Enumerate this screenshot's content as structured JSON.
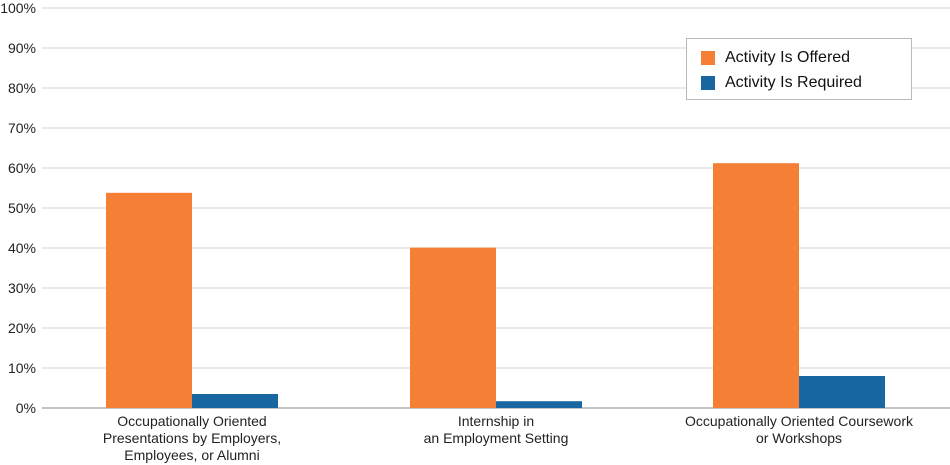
{
  "chart_data": {
    "type": "bar",
    "categories": [
      [
        "Occupationally Oriented",
        "Presentations by Employers,",
        "Employees, or Alumni"
      ],
      [
        "Internship in",
        "an Employment Setting"
      ],
      [
        "Occupationally Oriented Coursework",
        "or Workshops"
      ]
    ],
    "series": [
      {
        "name": "Activity Is Offered",
        "color": "#f47f35",
        "values": [
          53.8,
          40.1,
          61.2
        ]
      },
      {
        "name": "Activity Is Required",
        "color": "#1867a0",
        "values": [
          3.5,
          1.7,
          8.0
        ]
      }
    ],
    "ylim": [
      0,
      100
    ],
    "yticks": [
      "0%",
      "10%",
      "20%",
      "30%",
      "40%",
      "50%",
      "60%",
      "70%",
      "80%",
      "90%",
      "100%"
    ],
    "grid": true,
    "legend_position": "top-right",
    "title": "",
    "xlabel": "",
    "ylabel": ""
  }
}
